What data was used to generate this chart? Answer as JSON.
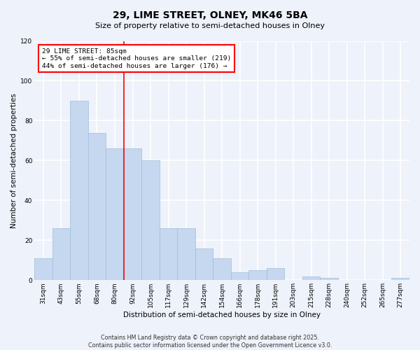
{
  "title": "29, LIME STREET, OLNEY, MK46 5BA",
  "subtitle": "Size of property relative to semi-detached houses in Olney",
  "xlabel": "Distribution of semi-detached houses by size in Olney",
  "ylabel": "Number of semi-detached properties",
  "categories": [
    "31sqm",
    "43sqm",
    "55sqm",
    "68sqm",
    "80sqm",
    "92sqm",
    "105sqm",
    "117sqm",
    "129sqm",
    "142sqm",
    "154sqm",
    "166sqm",
    "178sqm",
    "191sqm",
    "203sqm",
    "215sqm",
    "228sqm",
    "240sqm",
    "252sqm",
    "265sqm",
    "277sqm"
  ],
  "values": [
    11,
    26,
    90,
    74,
    66,
    66,
    60,
    26,
    26,
    16,
    11,
    4,
    5,
    6,
    0,
    2,
    1,
    0,
    0,
    0,
    1
  ],
  "bar_color": "#c5d8f0",
  "bar_edge_color": "#a0bcd8",
  "vline_x": 4.5,
  "property_label": "29 LIME STREET: 85sqm",
  "pct_smaller": 55,
  "pct_smaller_count": 219,
  "pct_larger": 44,
  "pct_larger_count": 176,
  "ylim": [
    0,
    120
  ],
  "yticks": [
    0,
    20,
    40,
    60,
    80,
    100,
    120
  ],
  "background_color": "#eef2fb",
  "axes_background": "#eef2fb",
  "grid_color": "#ffffff",
  "title_fontsize": 10,
  "subtitle_fontsize": 8,
  "axis_label_fontsize": 7.5,
  "tick_fontsize": 6.5,
  "annotation_fontsize": 6.8,
  "footer_line1": "Contains HM Land Registry data © Crown copyright and database right 2025.",
  "footer_line2": "Contains public sector information licensed under the Open Government Licence v3.0."
}
